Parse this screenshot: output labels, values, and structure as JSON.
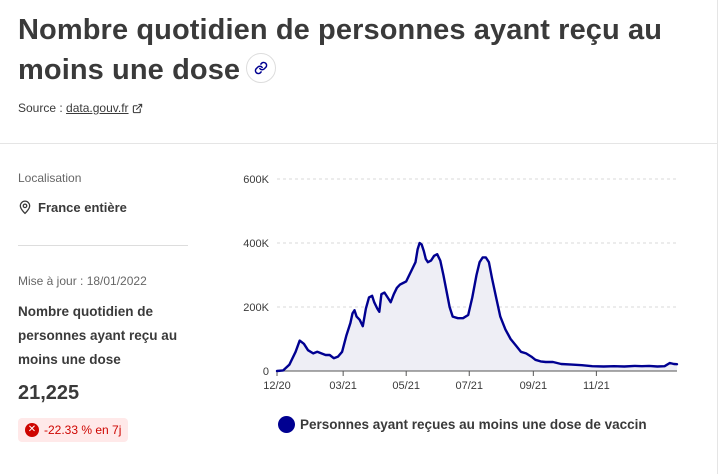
{
  "title": "Nombre quotidien de personnes ayant reçu au moins une dose",
  "source": {
    "prefix": "Source :",
    "link": "data.gouv.fr"
  },
  "location": {
    "label": "Localisation",
    "value": "France entière"
  },
  "update": "Mise à jour : 18/01/2022",
  "metric": {
    "label": "Nombre quotidien de personnes ayant reçu au moins une dose",
    "value": "21,225",
    "change": "-22.33 % en 7j"
  },
  "colors": {
    "series": "#000091",
    "area": "#eeeef5",
    "negative": "#ce0500",
    "negative_bg": "#ffe9e9"
  },
  "icons": {
    "link": "link-icon",
    "external": "external-link-icon",
    "location": "location-pin-icon",
    "change": "close-circle-icon"
  },
  "chart_data": {
    "type": "area",
    "title": "",
    "xlabel": "",
    "ylabel": "",
    "y_ticks": [
      0,
      200000,
      400000,
      600000
    ],
    "y_tick_labels": [
      "0",
      "200K",
      "400K",
      "600K"
    ],
    "ylim": [
      0,
      600000
    ],
    "x_range": [
      "2020-12-27",
      "2022-01-18"
    ],
    "x_ticks": [
      "2020-12-27",
      "2021-03-01",
      "2021-05-01",
      "2021-07-01",
      "2021-09-01",
      "2021-11-01"
    ],
    "x_tick_labels": [
      "12/20",
      "03/21",
      "05/21",
      "07/21",
      "09/21",
      "11/21"
    ],
    "grid": true,
    "legend": "bottom",
    "series": [
      {
        "name": "Personnes ayant reçues au moins une dose de vaccin",
        "points": [
          [
            "2020-12-27",
            0
          ],
          [
            "2021-01-02",
            2000
          ],
          [
            "2021-01-08",
            20000
          ],
          [
            "2021-01-14",
            60000
          ],
          [
            "2021-01-18",
            95000
          ],
          [
            "2021-01-22",
            85000
          ],
          [
            "2021-01-26",
            65000
          ],
          [
            "2021-01-31",
            55000
          ],
          [
            "2021-02-04",
            60000
          ],
          [
            "2021-02-08",
            55000
          ],
          [
            "2021-02-12",
            50000
          ],
          [
            "2021-02-16",
            50000
          ],
          [
            "2021-02-20",
            40000
          ],
          [
            "2021-02-24",
            45000
          ],
          [
            "2021-02-28",
            60000
          ],
          [
            "2021-03-04",
            110000
          ],
          [
            "2021-03-08",
            150000
          ],
          [
            "2021-03-10",
            180000
          ],
          [
            "2021-03-12",
            190000
          ],
          [
            "2021-03-14",
            170000
          ],
          [
            "2021-03-17",
            160000
          ],
          [
            "2021-03-20",
            140000
          ],
          [
            "2021-03-23",
            195000
          ],
          [
            "2021-03-26",
            230000
          ],
          [
            "2021-03-29",
            235000
          ],
          [
            "2021-03-31",
            215000
          ],
          [
            "2021-04-03",
            195000
          ],
          [
            "2021-04-05",
            185000
          ],
          [
            "2021-04-07",
            240000
          ],
          [
            "2021-04-10",
            245000
          ],
          [
            "2021-04-13",
            230000
          ],
          [
            "2021-04-16",
            215000
          ],
          [
            "2021-04-19",
            240000
          ],
          [
            "2021-04-22",
            260000
          ],
          [
            "2021-04-25",
            270000
          ],
          [
            "2021-04-28",
            275000
          ],
          [
            "2021-05-01",
            280000
          ],
          [
            "2021-05-04",
            300000
          ],
          [
            "2021-05-07",
            320000
          ],
          [
            "2021-05-10",
            340000
          ],
          [
            "2021-05-12",
            380000
          ],
          [
            "2021-05-14",
            400000
          ],
          [
            "2021-05-16",
            395000
          ],
          [
            "2021-05-18",
            375000
          ],
          [
            "2021-05-20",
            350000
          ],
          [
            "2021-05-22",
            340000
          ],
          [
            "2021-05-25",
            345000
          ],
          [
            "2021-05-28",
            360000
          ],
          [
            "2021-05-31",
            365000
          ],
          [
            "2021-06-03",
            345000
          ],
          [
            "2021-06-06",
            300000
          ],
          [
            "2021-06-09",
            250000
          ],
          [
            "2021-06-12",
            200000
          ],
          [
            "2021-06-15",
            170000
          ],
          [
            "2021-06-20",
            165000
          ],
          [
            "2021-06-25",
            165000
          ],
          [
            "2021-06-30",
            175000
          ],
          [
            "2021-07-04",
            230000
          ],
          [
            "2021-07-08",
            300000
          ],
          [
            "2021-07-11",
            340000
          ],
          [
            "2021-07-14",
            355000
          ],
          [
            "2021-07-17",
            355000
          ],
          [
            "2021-07-20",
            340000
          ],
          [
            "2021-07-23",
            290000
          ],
          [
            "2021-07-27",
            230000
          ],
          [
            "2021-07-31",
            170000
          ],
          [
            "2021-08-05",
            130000
          ],
          [
            "2021-08-10",
            100000
          ],
          [
            "2021-08-15",
            80000
          ],
          [
            "2021-08-20",
            60000
          ],
          [
            "2021-08-25",
            55000
          ],
          [
            "2021-08-30",
            45000
          ],
          [
            "2021-09-03",
            35000
          ],
          [
            "2021-09-08",
            30000
          ],
          [
            "2021-09-13",
            28000
          ],
          [
            "2021-09-20",
            28000
          ],
          [
            "2021-09-28",
            22000
          ],
          [
            "2021-10-08",
            20000
          ],
          [
            "2021-10-18",
            18000
          ],
          [
            "2021-10-28",
            15000
          ],
          [
            "2021-11-08",
            14000
          ],
          [
            "2021-11-18",
            15000
          ],
          [
            "2021-11-28",
            14000
          ],
          [
            "2021-12-08",
            16000
          ],
          [
            "2021-12-15",
            15000
          ],
          [
            "2021-12-22",
            16000
          ],
          [
            "2021-12-30",
            14000
          ],
          [
            "2022-01-06",
            15000
          ],
          [
            "2022-01-11",
            25000
          ],
          [
            "2022-01-15",
            22000
          ],
          [
            "2022-01-18",
            21225
          ]
        ]
      }
    ]
  }
}
